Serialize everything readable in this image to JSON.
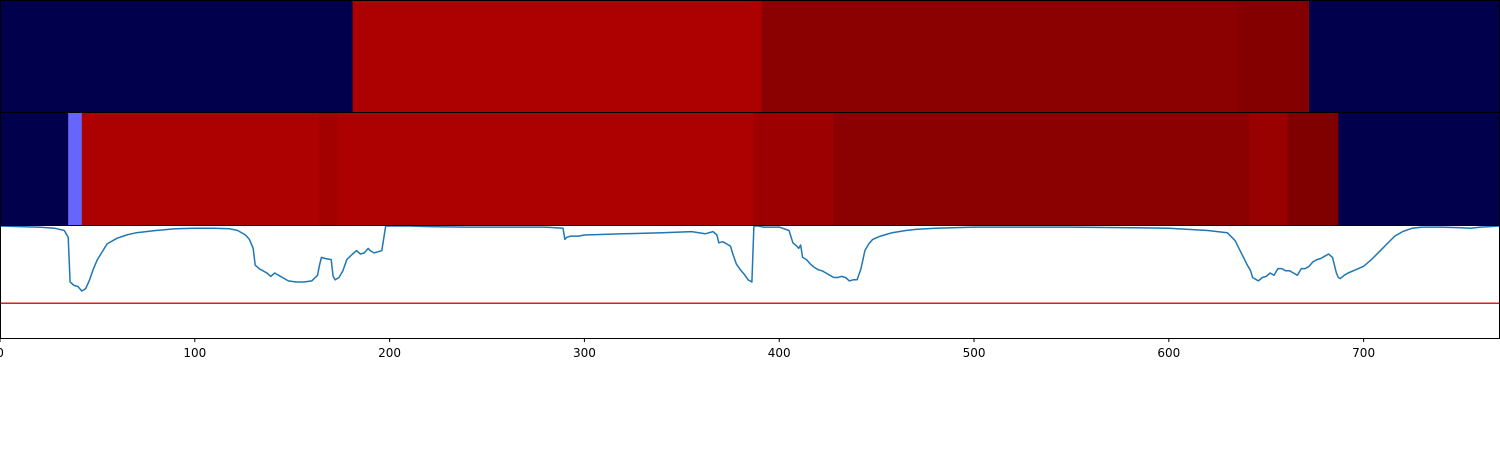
{
  "chart_data": {
    "type": "heatmap",
    "xlim": [
      0,
      770
    ],
    "x_ticks": [
      {
        "value": 0,
        "label": "0"
      },
      {
        "value": 100,
        "label": "100"
      },
      {
        "value": 200,
        "label": "200"
      },
      {
        "value": 300,
        "label": "300"
      },
      {
        "value": 400,
        "label": "400"
      },
      {
        "value": 500,
        "label": "500"
      },
      {
        "value": 600,
        "label": "600"
      },
      {
        "value": 700,
        "label": "700"
      }
    ],
    "heatmap_rows": [
      {
        "segments": [
          {
            "start": 0,
            "end": 181,
            "color": "#00004c"
          },
          {
            "start": 181,
            "end": 391,
            "color": "#ad0000"
          },
          {
            "start": 391,
            "end": 636,
            "color": "#8b0000"
          },
          {
            "start": 636,
            "end": 672,
            "color": "#840000"
          },
          {
            "start": 672,
            "end": 770,
            "color": "#00004c"
          }
        ]
      },
      {
        "segments": [
          {
            "start": 0,
            "end": 35,
            "color": "#00004c"
          },
          {
            "start": 35,
            "end": 42,
            "color": "#6666ff"
          },
          {
            "start": 42,
            "end": 164,
            "color": "#ad0000"
          },
          {
            "start": 164,
            "end": 173,
            "color": "#a30000"
          },
          {
            "start": 173,
            "end": 387,
            "color": "#ad0000"
          },
          {
            "start": 387,
            "end": 428,
            "color": "#9c0000"
          },
          {
            "start": 428,
            "end": 641,
            "color": "#8b0000"
          },
          {
            "start": 641,
            "end": 661,
            "color": "#990000"
          },
          {
            "start": 661,
            "end": 687,
            "color": "#800000"
          },
          {
            "start": 687,
            "end": 770,
            "color": "#00004c"
          }
        ]
      }
    ],
    "line_panel": {
      "ylim": [
        0,
        100
      ],
      "threshold": 31,
      "threshold_color": "#e41a1c",
      "line_color": "#1f77b4",
      "series": [
        [
          0,
          100
        ],
        [
          10,
          99.5
        ],
        [
          20,
          99
        ],
        [
          28,
          98
        ],
        [
          33,
          96
        ],
        [
          35,
          90
        ],
        [
          36,
          50
        ],
        [
          38,
          47
        ],
        [
          40,
          46
        ],
        [
          42,
          42
        ],
        [
          44,
          44
        ],
        [
          46,
          52
        ],
        [
          48,
          62
        ],
        [
          50,
          70
        ],
        [
          55,
          84
        ],
        [
          60,
          89
        ],
        [
          65,
          92
        ],
        [
          70,
          94
        ],
        [
          80,
          96
        ],
        [
          90,
          97.5
        ],
        [
          100,
          98
        ],
        [
          110,
          98
        ],
        [
          118,
          97.5
        ],
        [
          122,
          96
        ],
        [
          126,
          92
        ],
        [
          128,
          88
        ],
        [
          130,
          80
        ],
        [
          131,
          65
        ],
        [
          133,
          62
        ],
        [
          135,
          60
        ],
        [
          137,
          58
        ],
        [
          139,
          55
        ],
        [
          141,
          58
        ],
        [
          143,
          56
        ],
        [
          145,
          54
        ],
        [
          148,
          51
        ],
        [
          152,
          50
        ],
        [
          156,
          50
        ],
        [
          160,
          51
        ],
        [
          163,
          56
        ],
        [
          164,
          65
        ],
        [
          165,
          72
        ],
        [
          167,
          71
        ],
        [
          170,
          70
        ],
        [
          171,
          55
        ],
        [
          172,
          52
        ],
        [
          174,
          54
        ],
        [
          176,
          60
        ],
        [
          178,
          70
        ],
        [
          181,
          75
        ],
        [
          183,
          78
        ],
        [
          185,
          75
        ],
        [
          187,
          76
        ],
        [
          189,
          80
        ],
        [
          190,
          78
        ],
        [
          192,
          76
        ],
        [
          194,
          77
        ],
        [
          196,
          78
        ],
        [
          198,
          100
        ],
        [
          200,
          100
        ],
        [
          210,
          100
        ],
        [
          220,
          99.5
        ],
        [
          240,
          99
        ],
        [
          260,
          99
        ],
        [
          280,
          99
        ],
        [
          289,
          98
        ],
        [
          290,
          88
        ],
        [
          291,
          90
        ],
        [
          293,
          91
        ],
        [
          297,
          91
        ],
        [
          300,
          92
        ],
        [
          320,
          93
        ],
        [
          340,
          94
        ],
        [
          355,
          95
        ],
        [
          362,
          93
        ],
        [
          366,
          95
        ],
        [
          368,
          92
        ],
        [
          369,
          85
        ],
        [
          371,
          86
        ],
        [
          373,
          84
        ],
        [
          375,
          82
        ],
        [
          376,
          76
        ],
        [
          377,
          71
        ],
        [
          378,
          66
        ],
        [
          380,
          61
        ],
        [
          382,
          57
        ],
        [
          384,
          52
        ],
        [
          385,
          51
        ],
        [
          386,
          50
        ],
        [
          387,
          100
        ],
        [
          389,
          100
        ],
        [
          392,
          99
        ],
        [
          400,
          99
        ],
        [
          405,
          96
        ],
        [
          407,
          85
        ],
        [
          409,
          82
        ],
        [
          410,
          80
        ],
        [
          411,
          83
        ],
        [
          412,
          72
        ],
        [
          414,
          70
        ],
        [
          416,
          66
        ],
        [
          418,
          63
        ],
        [
          420,
          61
        ],
        [
          422,
          60
        ],
        [
          424,
          58
        ],
        [
          426,
          56
        ],
        [
          428,
          54
        ],
        [
          430,
          54
        ],
        [
          432,
          55
        ],
        [
          434,
          54
        ],
        [
          436,
          51
        ],
        [
          438,
          52
        ],
        [
          440,
          52
        ],
        [
          442,
          62
        ],
        [
          444,
          78
        ],
        [
          446,
          84
        ],
        [
          448,
          88
        ],
        [
          452,
          91
        ],
        [
          458,
          94
        ],
        [
          465,
          96
        ],
        [
          470,
          97
        ],
        [
          480,
          98
        ],
        [
          500,
          99
        ],
        [
          550,
          99
        ],
        [
          600,
          98
        ],
        [
          620,
          96
        ],
        [
          630,
          94
        ],
        [
          634,
          87
        ],
        [
          636,
          80
        ],
        [
          638,
          73
        ],
        [
          640,
          66
        ],
        [
          642,
          60
        ],
        [
          643,
          54
        ],
        [
          645,
          52
        ],
        [
          646,
          51
        ],
        [
          648,
          54
        ],
        [
          650,
          55
        ],
        [
          652,
          58
        ],
        [
          654,
          56
        ],
        [
          656,
          62
        ],
        [
          658,
          62
        ],
        [
          660,
          60
        ],
        [
          662,
          60
        ],
        [
          664,
          58
        ],
        [
          666,
          56
        ],
        [
          668,
          62
        ],
        [
          670,
          62
        ],
        [
          672,
          64
        ],
        [
          674,
          68
        ],
        [
          676,
          70
        ],
        [
          678,
          71
        ],
        [
          680,
          73
        ],
        [
          682,
          75
        ],
        [
          684,
          72
        ],
        [
          686,
          58
        ],
        [
          687,
          54
        ],
        [
          688,
          53
        ],
        [
          690,
          56
        ],
        [
          692,
          58
        ],
        [
          696,
          61
        ],
        [
          700,
          64
        ],
        [
          704,
          70
        ],
        [
          708,
          77
        ],
        [
          712,
          84
        ],
        [
          716,
          91
        ],
        [
          720,
          95
        ],
        [
          725,
          98
        ],
        [
          730,
          99
        ],
        [
          740,
          99
        ],
        [
          750,
          98.5
        ],
        [
          755,
          98
        ],
        [
          760,
          99
        ],
        [
          770,
          100
        ]
      ]
    }
  }
}
